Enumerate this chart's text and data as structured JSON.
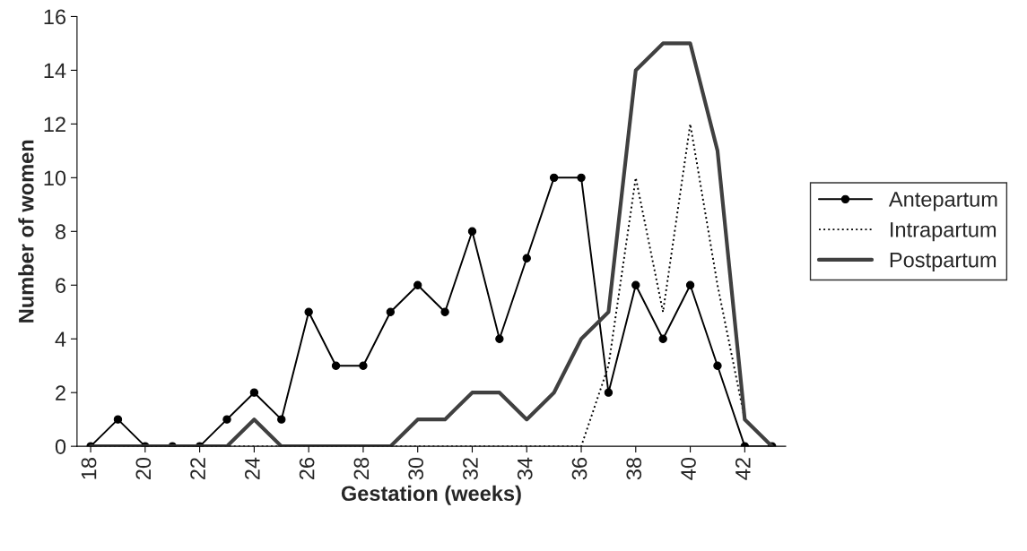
{
  "chart_data": {
    "type": "line",
    "xlabel": "Gestation (weeks)",
    "ylabel": "Number of women",
    "x": [
      18,
      19,
      20,
      21,
      22,
      23,
      24,
      25,
      26,
      27,
      28,
      29,
      30,
      31,
      32,
      33,
      34,
      35,
      36,
      37,
      38,
      39,
      40,
      41,
      42,
      43
    ],
    "xlim": [
      17.5,
      43.5
    ],
    "xticks": [
      18,
      20,
      22,
      24,
      26,
      28,
      30,
      32,
      34,
      36,
      38,
      40,
      42
    ],
    "ylim": [
      0,
      16
    ],
    "yticks": [
      0,
      2,
      4,
      6,
      8,
      10,
      12,
      14,
      16
    ],
    "grid": false,
    "legend": "right",
    "series": [
      {
        "name": "Antepartum",
        "color": "#000000",
        "marker": "circle",
        "line_style": "solid",
        "values": [
          0,
          1,
          0,
          0,
          0,
          1,
          2,
          1,
          5,
          3,
          3,
          5,
          6,
          5,
          8,
          4,
          7,
          10,
          10,
          2,
          6,
          4,
          6,
          3,
          0,
          0
        ]
      },
      {
        "name": "Intrapartum",
        "color": "#000000",
        "marker": "none",
        "line_style": "dotted",
        "values": [
          0,
          0,
          0,
          0,
          0,
          0,
          0,
          0,
          0,
          0,
          0,
          0,
          0,
          0,
          0,
          0,
          0,
          0,
          0,
          3,
          10,
          5,
          12,
          6,
          1,
          0
        ]
      },
      {
        "name": "Postpartum",
        "color": "#404040",
        "marker": "none",
        "line_style": "solid",
        "values": [
          0,
          0,
          0,
          0,
          0,
          0,
          1,
          0,
          0,
          0,
          0,
          0,
          1,
          1,
          2,
          2,
          1,
          2,
          4,
          5,
          14,
          15,
          15,
          11,
          1,
          0
        ]
      }
    ]
  }
}
